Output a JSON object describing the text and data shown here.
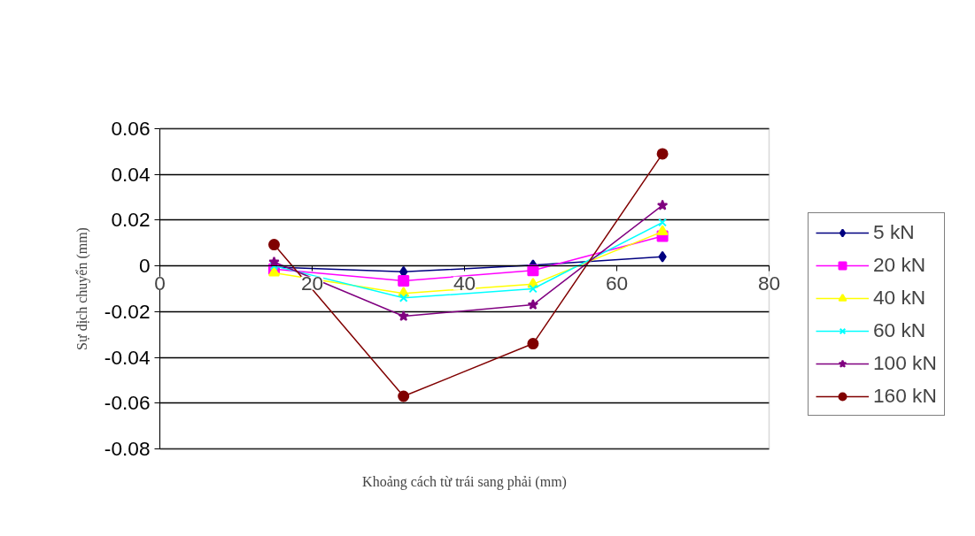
{
  "chart_data": {
    "type": "line",
    "xlabel": "Khoảng cách từ trái sang phải (mm)",
    "ylabel": "Sự dịch chuyển (mm)",
    "x": [
      15,
      32,
      49,
      66
    ],
    "series": [
      {
        "name": "5 kN",
        "color": "#000080",
        "marker": "diamond",
        "values": [
          -0.0005,
          -0.0026,
          0.0003,
          0.004
        ]
      },
      {
        "name": "20 kN",
        "color": "#ff00ff",
        "marker": "square",
        "values": [
          -0.0014,
          -0.0065,
          -0.002,
          0.013
        ]
      },
      {
        "name": "40 kN",
        "color": "#ffff00",
        "marker": "triangle",
        "values": [
          -0.003,
          -0.012,
          -0.008,
          0.015
        ]
      },
      {
        "name": "60 kN",
        "color": "#00ffff",
        "marker": "cross",
        "values": [
          0.0,
          -0.014,
          -0.01,
          0.019
        ]
      },
      {
        "name": "100 kN",
        "color": "#800080",
        "marker": "star",
        "values": [
          0.0017,
          -0.022,
          -0.017,
          0.0265
        ]
      },
      {
        "name": "160 kN",
        "color": "#800000",
        "marker": "circle",
        "values": [
          0.0093,
          -0.057,
          -0.034,
          0.049
        ]
      }
    ],
    "xlim": [
      0,
      80
    ],
    "xticks": [
      0,
      20,
      40,
      60,
      80
    ],
    "ylim": [
      -0.08,
      0.06
    ],
    "yticks": [
      {
        "value": -0.08,
        "label": "-0.08"
      },
      {
        "value": -0.06,
        "label": "-0.06"
      },
      {
        "value": -0.04,
        "label": "-0.04"
      },
      {
        "value": -0.02,
        "label": "-0.02"
      },
      {
        "value": 0,
        "label": "0"
      },
      {
        "value": 0.02,
        "label": "0.02"
      },
      {
        "value": 0.04,
        "label": "0.04"
      },
      {
        "value": 0.06,
        "label": "0.06"
      }
    ],
    "grid": "y",
    "legend": "right",
    "line_style": "solid"
  }
}
